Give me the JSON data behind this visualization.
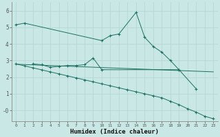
{
  "xlabel": "Humidex (Indice chaleur)",
  "x_ticks": [
    0,
    1,
    2,
    3,
    4,
    5,
    6,
    7,
    8,
    9,
    10,
    11,
    12,
    13,
    14,
    15,
    16,
    17,
    18,
    19,
    20,
    21,
    22,
    23
  ],
  "y_ticks": [
    0,
    1,
    2,
    3,
    4,
    5,
    6
  ],
  "y_tick_labels": [
    "-0",
    "1",
    "2",
    "3",
    "4",
    "5",
    "6"
  ],
  "ylim": [
    -0.65,
    6.5
  ],
  "xlim": [
    -0.5,
    23.5
  ],
  "bg_color": "#c9e8e5",
  "grid_color": "#b2d4d0",
  "line_color": "#1a7060",
  "series": [
    {
      "x": [
        0,
        1,
        10,
        11,
        12,
        14,
        15,
        16,
        17,
        18,
        19,
        21
      ],
      "y": [
        5.15,
        5.25,
        4.2,
        4.5,
        4.6,
        5.9,
        4.4,
        3.85,
        3.5,
        3.0,
        2.45,
        1.3
      ],
      "marker": "+",
      "ls": "-"
    },
    {
      "x": [
        2,
        3,
        4,
        5,
        6,
        7,
        8,
        9,
        10,
        19
      ],
      "y": [
        2.8,
        2.75,
        2.6,
        2.65,
        2.7,
        2.7,
        2.75,
        3.15,
        2.45,
        2.45
      ],
      "marker": "+",
      "ls": "-"
    },
    {
      "x": [
        0,
        1,
        2,
        3,
        4,
        5,
        6,
        7,
        8,
        9,
        10,
        11,
        12,
        13,
        14,
        15,
        16,
        17,
        18,
        19,
        20,
        21,
        22,
        23
      ],
      "y": [
        2.78,
        2.76,
        2.74,
        2.72,
        2.7,
        2.68,
        2.66,
        2.64,
        2.62,
        2.6,
        2.58,
        2.56,
        2.54,
        2.52,
        2.5,
        2.48,
        2.46,
        2.44,
        2.42,
        2.4,
        2.38,
        2.36,
        2.34,
        2.32
      ],
      "marker": null,
      "ls": "-"
    },
    {
      "x": [
        0,
        1,
        2,
        3,
        4,
        5,
        6,
        7,
        8,
        9,
        10,
        11,
        12,
        13,
        14,
        15,
        16,
        17,
        18,
        19,
        20,
        21,
        22,
        23
      ],
      "y": [
        2.8,
        2.68,
        2.56,
        2.44,
        2.32,
        2.2,
        2.08,
        1.96,
        1.84,
        1.72,
        1.6,
        1.48,
        1.36,
        1.24,
        1.12,
        1.0,
        0.88,
        0.76,
        0.55,
        0.35,
        0.1,
        -0.1,
        -0.35,
        -0.5
      ],
      "marker": "+",
      "ls": "-"
    }
  ]
}
